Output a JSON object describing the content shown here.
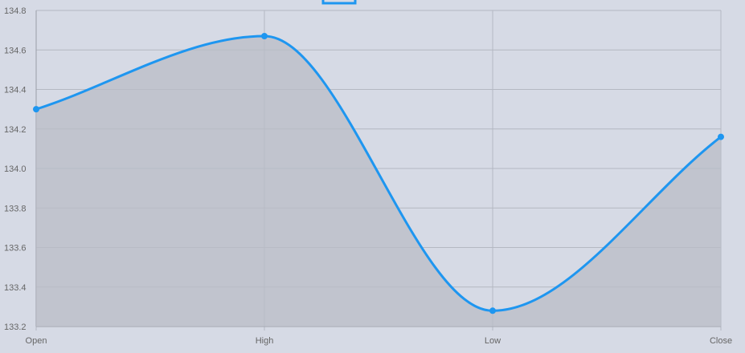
{
  "chart_data": {
    "type": "line",
    "categories": [
      "Open",
      "High",
      "Low",
      "Close"
    ],
    "series": [
      {
        "values": [
          134.3,
          134.67,
          133.28,
          134.16
        ]
      }
    ],
    "legend": {
      "position": "top",
      "label": ""
    },
    "ylim": [
      133.2,
      134.8
    ],
    "yticks": [
      "133.2",
      "133.4",
      "133.6",
      "133.8",
      "134.0",
      "134.2",
      "134.4",
      "134.6",
      "134.8"
    ],
    "grid": true,
    "fill": true,
    "smooth": true,
    "colors": {
      "line": "#1e96f0",
      "fill": "#b9bcc5",
      "grid": "#b4b8c2",
      "background": "#d6dae5",
      "tick": "#666666"
    }
  }
}
